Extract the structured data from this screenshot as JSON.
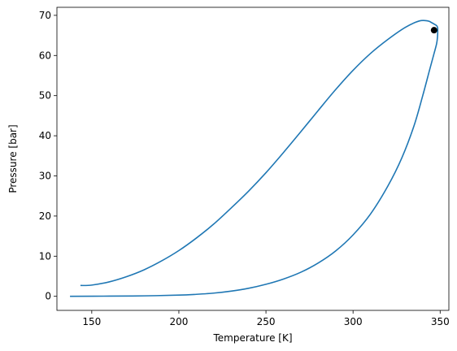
{
  "chart_data": {
    "type": "line",
    "title": "",
    "xlabel": "Temperature [K]",
    "ylabel": "Pressure [bar]",
    "xlim": [
      130,
      355
    ],
    "ylim": [
      -3.5,
      72
    ],
    "x_ticks": [
      150,
      200,
      250,
      300,
      350
    ],
    "y_ticks": [
      0,
      10,
      20,
      30,
      40,
      50,
      60,
      70
    ],
    "grid": false,
    "legend": "none",
    "series_color": "#1f77b4",
    "series": [
      {
        "x": [
          137.5,
          160,
          180,
          200,
          210,
          220,
          230,
          240,
          250,
          260,
          270,
          280,
          290,
          300,
          310,
          320,
          328,
          335,
          340,
          344,
          346.5,
          348,
          348.5,
          348.6,
          348.5,
          348,
          347,
          345,
          343,
          338,
          330,
          320,
          310,
          300,
          290,
          280,
          270,
          260,
          250,
          240,
          230,
          220,
          210,
          200,
          190,
          180,
          170,
          160,
          150,
          143.5
        ],
        "y": [
          0,
          0.05,
          0.12,
          0.3,
          0.5,
          0.8,
          1.3,
          2.0,
          3.0,
          4.3,
          6.0,
          8.3,
          11.3,
          15.3,
          20.5,
          27.5,
          34.5,
          42.5,
          50.0,
          56.5,
          60.5,
          63.0,
          64.8,
          66.3,
          67.0,
          67.4,
          67.7,
          68.2,
          68.6,
          68.6,
          67.0,
          64.0,
          60.5,
          56.3,
          51.5,
          46.3,
          41.0,
          35.8,
          30.8,
          26.2,
          22.0,
          18.0,
          14.5,
          11.4,
          8.8,
          6.6,
          4.9,
          3.6,
          2.8,
          2.7
        ]
      }
    ],
    "critical_point": {
      "x": 346.5,
      "y": 66.3,
      "color": "#000000"
    }
  }
}
